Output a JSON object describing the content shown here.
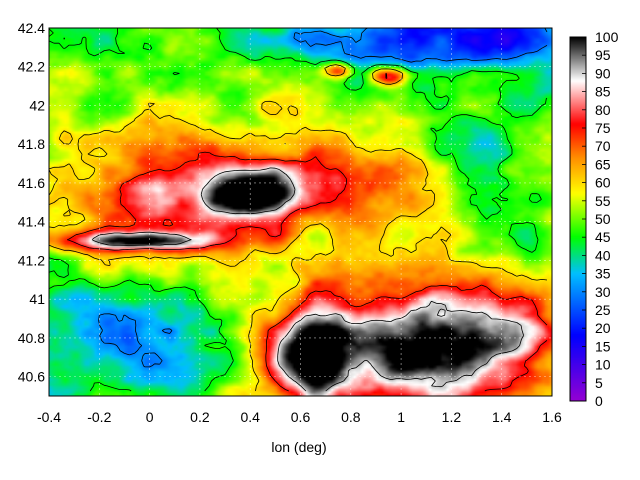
{
  "chart_data": {
    "type": "heatmap",
    "title": "",
    "xlabel": "lon (deg)",
    "ylabel": "",
    "xlim": [
      -0.4,
      1.6
    ],
    "ylim": [
      40.5,
      42.4
    ],
    "xticks": [
      "-0.4",
      "-0.2",
      "0",
      "0.2",
      "0.4",
      "0.6",
      "0.8",
      "1",
      "1.2",
      "1.4",
      "1.6"
    ],
    "xtick_values": [
      -0.4,
      -0.2,
      0,
      0.2,
      0.4,
      0.6,
      0.8,
      1.0,
      1.2,
      1.4,
      1.6
    ],
    "yticks": [
      "40.6",
      "40.8",
      "41",
      "41.2",
      "41.4",
      "41.6",
      "41.8",
      "42",
      "42.2",
      "42.4"
    ],
    "ytick_values": [
      40.6,
      40.8,
      41.0,
      41.2,
      41.4,
      41.6,
      41.8,
      42.0,
      42.2,
      42.4
    ],
    "grid": true,
    "colorbar": {
      "range": [
        0,
        100
      ],
      "ticks": [
        "0",
        "5",
        "10",
        "15",
        "20",
        "25",
        "30",
        "35",
        "40",
        "45",
        "50",
        "55",
        "60",
        "65",
        "70",
        "75",
        "80",
        "85",
        "90",
        "95",
        "100"
      ],
      "tick_values": [
        0,
        5,
        10,
        15,
        20,
        25,
        30,
        35,
        40,
        45,
        50,
        55,
        60,
        65,
        70,
        75,
        80,
        85,
        90,
        95,
        100
      ],
      "colors": [
        "#9400d3",
        "#0000ff",
        "#00bfff",
        "#00ff00",
        "#ffff00",
        "#ff8c00",
        "#ff0000",
        "#ffffff",
        "#000000"
      ],
      "color_stops": [
        0,
        18,
        35,
        45,
        57,
        67,
        76,
        88,
        100
      ]
    },
    "contours": true,
    "contour_color": "#000000",
    "approx_field_regions": [
      {
        "description": "low values (blue/purple) along northern edge",
        "lon": [
          0.6,
          1.6
        ],
        "lat": [
          42.0,
          42.4
        ],
        "value": 22
      },
      {
        "description": "high values (red/white) across central band",
        "lon": [
          -0.4,
          1.0
        ],
        "lat": [
          41.3,
          41.9
        ],
        "value": 80
      },
      {
        "description": "saturated (black/gray) region in south-east",
        "lon": [
          0.4,
          1.6
        ],
        "lat": [
          40.5,
          41.2
        ],
        "value": 98
      },
      {
        "description": "medium values (green/cyan) in south-west",
        "lon": [
          -0.4,
          0.3
        ],
        "lat": [
          40.5,
          41.1
        ],
        "value": 40
      }
    ]
  }
}
